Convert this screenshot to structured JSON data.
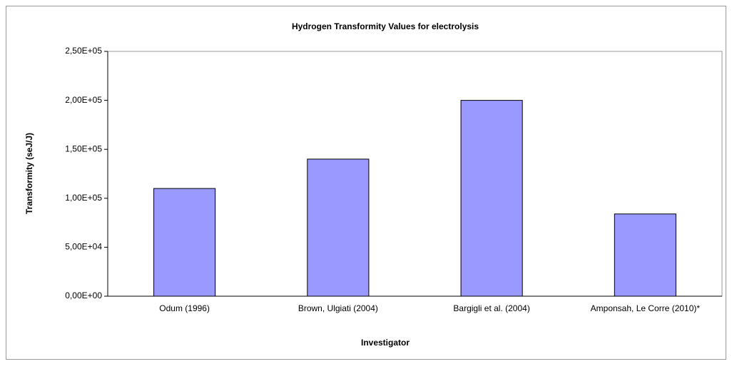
{
  "chart_data": {
    "type": "bar",
    "title": "Hydrogen Transformity Values for electrolysis",
    "xlabel": "Investigator",
    "ylabel": "Transformity (seJ/J)",
    "categories": [
      "Odum (1996)",
      "Brown, Ulgiati (2004)",
      "Bargigli et al. (2004)",
      "Amponsah, Le Corre (2010)*"
    ],
    "values": [
      110000,
      140000,
      200000,
      84000
    ],
    "color": "#9999ff",
    "ylim": [
      0,
      250000
    ],
    "yticks": [
      {
        "value": 0,
        "label": "0,00E+00"
      },
      {
        "value": 50000,
        "label": "5,00E+04"
      },
      {
        "value": 100000,
        "label": "1,00E+05"
      },
      {
        "value": 150000,
        "label": "1,50E+05"
      },
      {
        "value": 200000,
        "label": "2,00E+05"
      },
      {
        "value": 250000,
        "label": "2,50E+05"
      }
    ],
    "grid": false
  }
}
